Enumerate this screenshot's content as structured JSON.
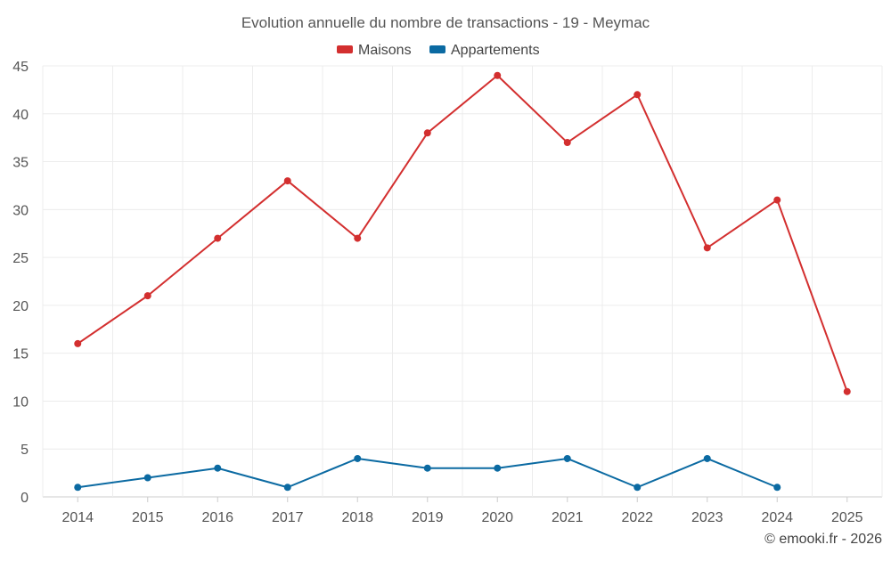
{
  "chart_data": {
    "type": "line",
    "title": "Evolution annuelle du nombre de transactions - 19 - Meymac",
    "xlabel": "",
    "ylabel": "",
    "categories": [
      "2014",
      "2015",
      "2016",
      "2017",
      "2018",
      "2019",
      "2020",
      "2021",
      "2022",
      "2023",
      "2024",
      "2025"
    ],
    "yticks": [
      0,
      5,
      10,
      15,
      20,
      25,
      30,
      35,
      40,
      45
    ],
    "ylim": [
      0,
      45
    ],
    "grid": true,
    "legend_position": "top-center",
    "series": [
      {
        "name": "Maisons",
        "color": "#d32f2f",
        "values": [
          16,
          21,
          27,
          33,
          27,
          38,
          44,
          37,
          42,
          26,
          31,
          11
        ]
      },
      {
        "name": "Appartements",
        "color": "#0b6aa2",
        "values": [
          1,
          2,
          3,
          1,
          4,
          3,
          3,
          4,
          1,
          4,
          1,
          null
        ]
      }
    ]
  },
  "footer": {
    "copyright": "© emooki.fr - 2026"
  }
}
